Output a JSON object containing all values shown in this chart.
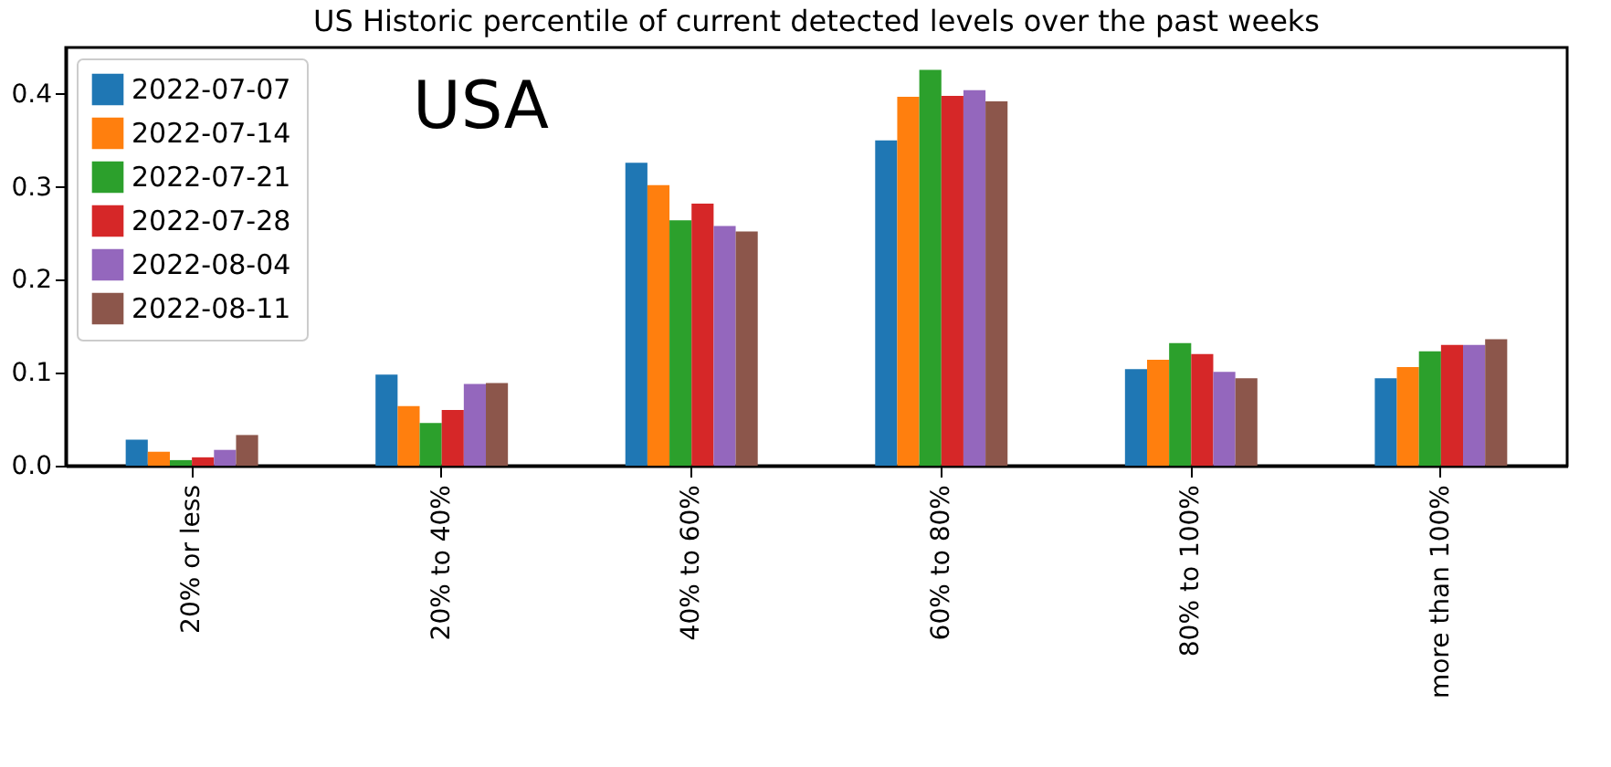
{
  "chart_data": {
    "type": "bar",
    "title": "US Historic percentile of current detected levels over the past weeks",
    "annotations": [
      "USA"
    ],
    "categories": [
      "20% or less",
      "20% to 40%",
      "40% to 60%",
      "60% to 80%",
      "80% to 100%",
      "more than 100%"
    ],
    "series": [
      {
        "name": "2022-07-07",
        "color": "#1f77b4",
        "values": [
          0.028,
          0.098,
          0.326,
          0.35,
          0.104,
          0.094
        ]
      },
      {
        "name": "2022-07-14",
        "color": "#ff7f0e",
        "values": [
          0.015,
          0.064,
          0.302,
          0.397,
          0.114,
          0.106
        ]
      },
      {
        "name": "2022-07-21",
        "color": "#2ca02c",
        "values": [
          0.006,
          0.046,
          0.264,
          0.426,
          0.132,
          0.123
        ]
      },
      {
        "name": "2022-07-28",
        "color": "#d62728",
        "values": [
          0.009,
          0.06,
          0.282,
          0.398,
          0.12,
          0.13
        ]
      },
      {
        "name": "2022-08-04",
        "color": "#9467bd",
        "values": [
          0.017,
          0.088,
          0.258,
          0.404,
          0.101,
          0.13
        ]
      },
      {
        "name": "2022-08-11",
        "color": "#8c564b",
        "values": [
          0.033,
          0.089,
          0.252,
          0.392,
          0.094,
          0.136
        ]
      }
    ],
    "ylim": [
      0,
      0.45
    ],
    "yticks": [
      {
        "value": 0,
        "label": "0.0"
      },
      0.1,
      0.2,
      0.3,
      0.4
    ],
    "grid": false,
    "legend": "top left"
  }
}
